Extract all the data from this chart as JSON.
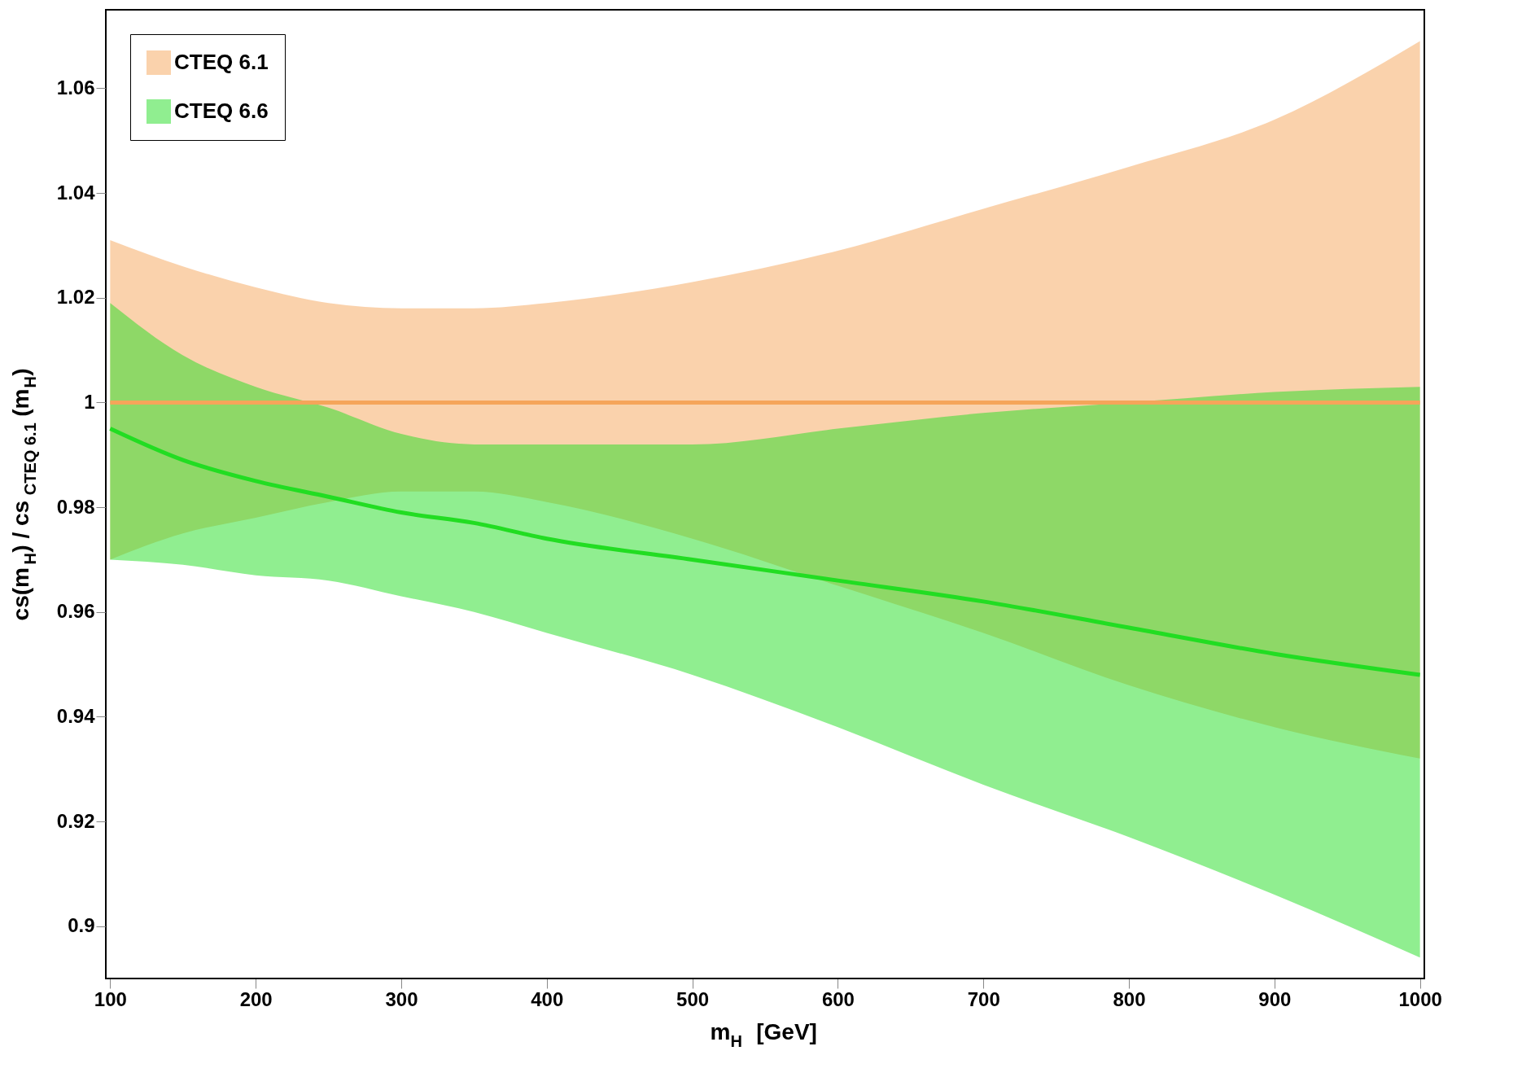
{
  "chart_data": {
    "type": "line",
    "xlabel": "m$_{H}$  [GeV]",
    "ylabel": "cs(m$_{H}$) / cs$_{CTEQ 6.1}$(m$_{H}$)",
    "x": [
      100,
      150,
      200,
      250,
      300,
      350,
      400,
      500,
      600,
      700,
      800,
      900,
      1000
    ],
    "series": [
      {
        "name": "CTEQ 6.1",
        "color": "#f5a55a",
        "values": [
          1,
          1,
          1,
          1,
          1,
          1,
          1,
          1,
          1,
          1,
          1,
          1,
          1
        ],
        "lower": [
          0.97,
          0.975,
          0.978,
          0.981,
          0.983,
          0.983,
          0.981,
          0.974,
          0.965,
          0.956,
          0.946,
          0.938,
          0.932
        ],
        "upper": [
          1.031,
          1.026,
          1.022,
          1.019,
          1.018,
          1.018,
          1.019,
          1.023,
          1.029,
          1.037,
          1.045,
          1.054,
          1.069
        ]
      },
      {
        "name": "CTEQ 6.6",
        "color": "#22dd22",
        "values": [
          0.995,
          0.989,
          0.985,
          0.982,
          0.979,
          0.977,
          0.974,
          0.97,
          0.966,
          0.962,
          0.957,
          0.952,
          0.948
        ],
        "lower": [
          0.97,
          0.969,
          0.967,
          0.966,
          0.963,
          0.96,
          0.956,
          0.948,
          0.938,
          0.927,
          0.917,
          0.906,
          0.894
        ],
        "upper": [
          1.019,
          1.009,
          1.003,
          0.999,
          0.994,
          0.992,
          0.992,
          0.992,
          0.995,
          0.998,
          1.0,
          1.002,
          1.003
        ]
      }
    ],
    "xlim": [
      97,
      1003
    ],
    "ylim": [
      0.89,
      1.075
    ],
    "xticks": [
      100,
      200,
      300,
      400,
      500,
      600,
      700,
      800,
      900,
      1000
    ],
    "yticks": [
      0.9,
      0.92,
      0.94,
      0.96,
      0.98,
      1,
      1.02,
      1.04,
      1.06
    ],
    "legend": "top left",
    "line_style": "solid"
  }
}
